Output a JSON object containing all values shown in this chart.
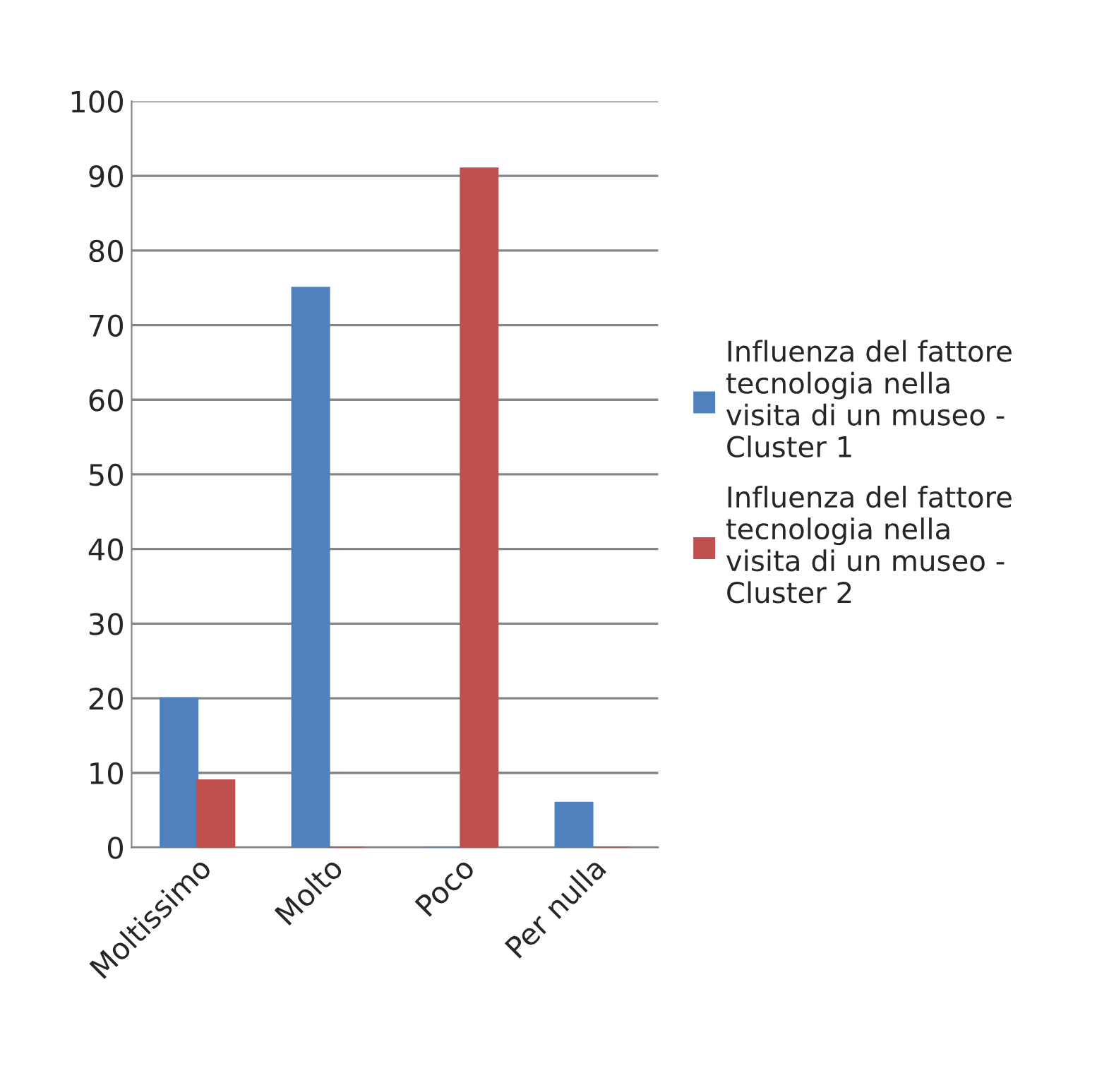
{
  "chart_data": {
    "type": "bar",
    "categories": [
      "Moltissimo",
      "Molto",
      "Poco",
      "Per nulla"
    ],
    "series": [
      {
        "name": "Influenza del fattore tecnologia nella visita di un museo - Cluster 1",
        "color": "#4f81bd",
        "values": [
          20,
          75,
          0,
          6
        ]
      },
      {
        "name": "Influenza del fattore tecnologia nella visita di un museo - Cluster 2",
        "color": "#c0504d",
        "values": [
          9,
          0,
          91,
          0
        ]
      }
    ],
    "ylim": [
      0,
      100
    ],
    "yticks": [
      0,
      10,
      20,
      30,
      40,
      50,
      60,
      70,
      80,
      90,
      100
    ],
    "grid": "y",
    "legend": "right"
  }
}
